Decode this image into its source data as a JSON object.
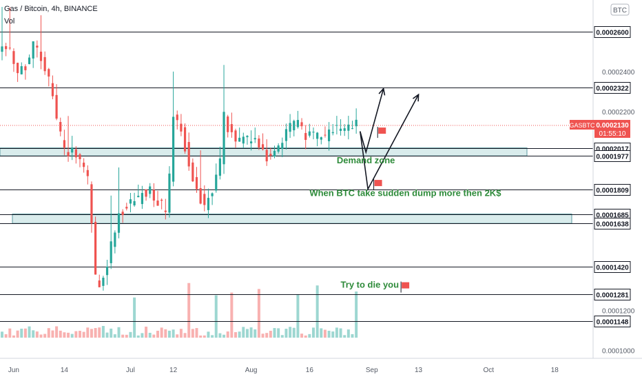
{
  "header": {
    "title": "Gas / Bitcoin, 4h, BINANCE",
    "indicator": "Vol"
  },
  "currency_badge": "BTC",
  "price_tag": {
    "symbol": "GASBTC",
    "price": "0.0002130",
    "countdown": "01:55:10",
    "color": "#ef5350"
  },
  "colors": {
    "up": "#26a69a",
    "down": "#ef5350",
    "zone_fill": "#d9ecec",
    "zone_stroke": "#5b9aa0",
    "note_text": "#2e8b3a",
    "flag": "#ef5350"
  },
  "annotations": [
    {
      "text": "Demand zone",
      "price": 0.000194,
      "date_index": 86
    },
    {
      "text": "When BTC take sudden dump more then 2K$",
      "price": 0.0001775,
      "date_index": 79
    },
    {
      "text": "Try to die you",
      "price": 0.0001315,
      "date_index": 87
    }
  ],
  "chart_data": {
    "type": "candlestick",
    "symbol": "GASBTC",
    "timeframe": "4h",
    "exchange": "BINANCE",
    "x_axis": {
      "ticks": [
        {
          "label": "Jun",
          "date_index": 3
        },
        {
          "label": "14",
          "date_index": 16
        },
        {
          "label": "Jul",
          "date_index": 33
        },
        {
          "label": "12",
          "date_index": 44
        },
        {
          "label": "Aug",
          "date_index": 64
        },
        {
          "label": "16",
          "date_index": 79
        },
        {
          "label": "Sep",
          "date_index": 95
        },
        {
          "label": "13",
          "date_index": 107
        },
        {
          "label": "Oct",
          "date_index": 125
        },
        {
          "label": "18",
          "date_index": 142
        }
      ]
    },
    "y_axis": {
      "scale": "linear",
      "range": [
        9.6e-05,
        0.000276
      ],
      "ticks": [
        {
          "label": "0.0002400",
          "value": 0.00024
        },
        {
          "label": "0.0002200",
          "value": 0.00022
        },
        {
          "label": "0.0001200",
          "value": 0.00012
        },
        {
          "label": "0.0001000",
          "value": 0.0001
        }
      ]
    },
    "levels": [
      {
        "label": "0.0002600",
        "value": 0.00026
      },
      {
        "label": "0.0002322",
        "value": 0.0002322
      },
      {
        "label": "0.0002017",
        "value": 0.0002017
      },
      {
        "label": "0.0001977",
        "value": 0.0001977
      },
      {
        "label": "0.0001809",
        "value": 0.0001809
      },
      {
        "label": "0.0001685",
        "value": 0.0001685
      },
      {
        "label": "0.0001638",
        "value": 0.0001638
      },
      {
        "label": "0.0001420",
        "value": 0.000142
      },
      {
        "label": "0.0001281",
        "value": 0.0001281
      },
      {
        "label": "0.0001148",
        "value": 0.0001148
      }
    ],
    "zones": [
      {
        "name": "Demand zone",
        "from": 0.0001977,
        "to": 0.0002017
      },
      {
        "from": 0.0001638,
        "to": 0.0001685
      }
    ],
    "last_price": 0.000213,
    "close_path": [
      [
        0,
        0.000253
      ],
      [
        2,
        0.00025
      ],
      [
        4,
        0.000238
      ],
      [
        6,
        0.000242
      ],
      [
        8,
        0.000253
      ],
      [
        10,
        0.000247
      ],
      [
        12,
        0.000235
      ],
      [
        14,
        0.000216
      ],
      [
        16,
        0.0002
      ],
      [
        18,
        0.000201
      ],
      [
        20,
        0.000196
      ],
      [
        22,
        0.000185
      ],
      [
        23,
        0.000165
      ],
      [
        24,
        0.000138
      ],
      [
        25,
        0.00013
      ],
      [
        26,
        0.000138
      ],
      [
        27,
        0.000144
      ],
      [
        28,
        0.000152
      ],
      [
        29,
        0.00016
      ],
      [
        30,
        0.000168
      ],
      [
        32,
        0.000172
      ],
      [
        34,
        0.000174
      ],
      [
        36,
        0.000179
      ],
      [
        38,
        0.00018
      ],
      [
        40,
        0.000175
      ],
      [
        42,
        0.00017
      ],
      [
        43,
        0.000186
      ],
      [
        44,
        0.000218
      ],
      [
        45,
        0.000214
      ],
      [
        46,
        0.00021
      ],
      [
        48,
        0.000195
      ],
      [
        50,
        0.00018
      ],
      [
        52,
        0.000172
      ],
      [
        54,
        0.000178
      ],
      [
        56,
        0.000195
      ],
      [
        57,
        0.000218
      ],
      [
        58,
        0.000212
      ],
      [
        60,
        0.000204
      ],
      [
        62,
        0.000208
      ],
      [
        64,
        0.000205
      ],
      [
        66,
        0.000203
      ],
      [
        68,
        0.000196
      ],
      [
        70,
        0.0002
      ],
      [
        72,
        0.000205
      ],
      [
        74,
        0.000212
      ],
      [
        76,
        0.000214
      ],
      [
        78,
        0.000207
      ],
      [
        80,
        0.000208
      ],
      [
        82,
        0.000206
      ],
      [
        84,
        0.000208
      ],
      [
        86,
        0.000212
      ],
      [
        88,
        0.00021
      ],
      [
        90,
        0.000212
      ],
      [
        91,
        0.000213
      ]
    ]
  }
}
